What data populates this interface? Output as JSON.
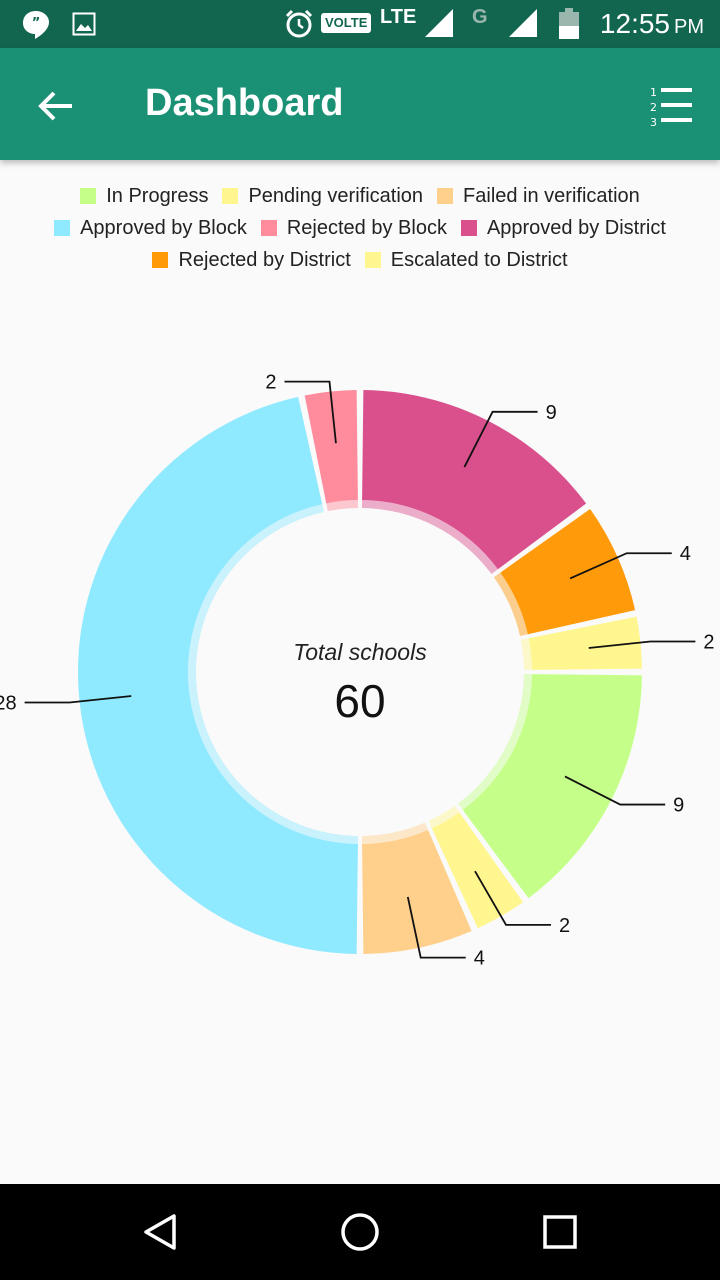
{
  "status_bar": {
    "time": "12:55",
    "ampm": "PM",
    "network_label": "LTE",
    "volte_label": "VOLTE",
    "second_network_label": "G",
    "icons": [
      "hangouts-icon",
      "image-icon",
      "alarm-icon",
      "signal-icon",
      "battery-icon"
    ]
  },
  "app_bar": {
    "title": "Dashboard",
    "back_icon": "arrow-left-icon",
    "menu_icon": "numbered-list-icon"
  },
  "chart_data": {
    "type": "pie",
    "style": "donut",
    "center_label": "Total schools",
    "center_value": "60",
    "legend_placement": "top",
    "legend": [
      {
        "label": "In Progress",
        "color": "#c5ff8a"
      },
      {
        "label": "Pending verification",
        "color": "#fff68f"
      },
      {
        "label": "Failed in verification",
        "color": "#ffd08c"
      },
      {
        "label": "Approved by Block",
        "color": "#8fe9ff"
      },
      {
        "label": "Rejected by Block",
        "color": "#ff8c9d"
      },
      {
        "label": "Approved by District",
        "color": "#d9508d"
      },
      {
        "label": "Rejected by District",
        "color": "#ff9a0a"
      },
      {
        "label": "Escalated to District",
        "color": "#fff68f"
      }
    ],
    "slices": [
      {
        "label": "Approved by District",
        "value": 9,
        "color": "#d9508d"
      },
      {
        "label": "Rejected by District",
        "value": 4,
        "color": "#ff9a0a"
      },
      {
        "label": "Escalated to District",
        "value": 2,
        "color": "#fff68f"
      },
      {
        "label": "In Progress",
        "value": 9,
        "color": "#c5ff8a"
      },
      {
        "label": "Pending verification",
        "value": 2,
        "color": "#fff68f"
      },
      {
        "label": "Failed in verification",
        "value": 4,
        "color": "#ffd08c"
      },
      {
        "label": "Approved by Block",
        "value": 28,
        "color": "#8fe9ff"
      },
      {
        "label": "Rejected by Block",
        "value": 2,
        "color": "#ff8c9d"
      }
    ]
  },
  "nav_bar": {
    "icons": [
      "back-triangle-icon",
      "home-circle-icon",
      "recents-square-icon"
    ]
  }
}
